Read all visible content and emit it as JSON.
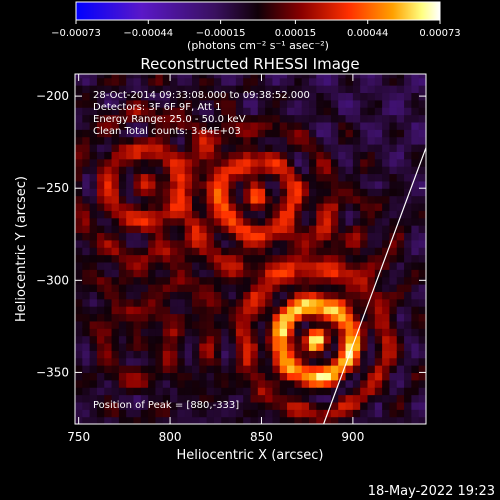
{
  "chart_data": {
    "type": "heatmap",
    "title": "Reconstructed RHESSI Image",
    "xlabel": "Heliocentric X (arcsec)",
    "ylabel": "Heliocentric Y (arcsec)",
    "xlim": [
      748,
      940
    ],
    "ylim": [
      -378,
      -188
    ],
    "x_ticks": [
      750,
      800,
      850,
      900
    ],
    "x_tick_labels": [
      "750",
      "800",
      "850",
      "900"
    ],
    "y_ticks": [
      -200,
      -250,
      -300,
      -350
    ],
    "y_tick_labels": [
      "−200",
      "−250",
      "−300",
      "−350"
    ],
    "colorbar": {
      "min": -0.00073,
      "max": 0.00073,
      "ticks": [
        -0.00073,
        -0.00044,
        -0.00015,
        0.00015,
        0.00044,
        0.00073
      ],
      "tick_labels": [
        "−0.00073",
        "−0.00044",
        "−0.00015",
        "0.00015",
        "0.00044",
        "0.00073"
      ],
      "unit": "(photons cm⁻² s⁻¹ asec⁻²)"
    },
    "annotations": [
      "28-Oct-2014 09:33:08.000 to 09:38:52.000",
      "Detectors: 3F 6F 9F, Att 1",
      "Energy Range: 25.0 - 50.0 keV",
      "Clean    Total counts: 3.84E+03",
      "Position of Peak = [880,-333]"
    ],
    "peak": [
      880,
      -333
    ],
    "limb_line": [
      [
        884,
        -378
      ],
      [
        940,
        -228
      ]
    ],
    "grid": false,
    "colors": {
      "colormap": [
        "#0000ff",
        "#5a18c8",
        "#3a1060",
        "#100008",
        "#8a0000",
        "#ff3000",
        "#ffa000",
        "#ffff80",
        "#ffffff"
      ]
    }
  },
  "footer": {
    "timestamp": "18-May-2022 19:23"
  }
}
